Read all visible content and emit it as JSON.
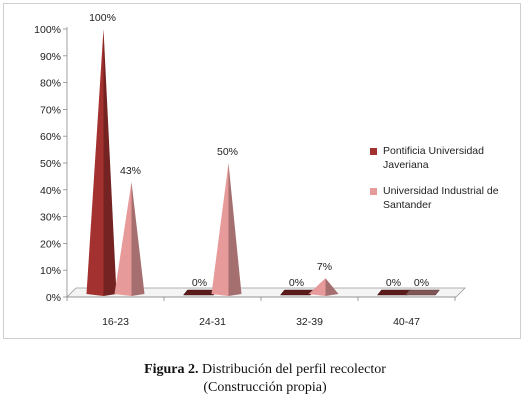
{
  "chart_data": {
    "type": "bar",
    "categories": [
      "16-23",
      "24-31",
      "32-39",
      "40-47"
    ],
    "series": [
      {
        "name": "Pontificia Universidad Javeriana",
        "color": "#a3312f",
        "values": [
          100,
          0,
          0,
          0
        ]
      },
      {
        "name": "Universidad Industrial de Santander",
        "color": "#e79a9a",
        "values": [
          43,
          50,
          7,
          0
        ]
      }
    ],
    "data_labels": [
      [
        "100%",
        "0%",
        "0%",
        "0%"
      ],
      [
        "43%",
        "50%",
        "7%",
        "0%"
      ]
    ],
    "yticks": [
      "0%",
      "10%",
      "20%",
      "30%",
      "40%",
      "50%",
      "60%",
      "70%",
      "80%",
      "90%",
      "100%"
    ],
    "ylim": [
      0,
      100
    ],
    "grid": false,
    "legend": "right",
    "style": "3d-cone"
  },
  "legend": [
    {
      "line1": "Pontificia Universidad",
      "line2": "Javeriana"
    },
    {
      "line1": "Universidad Industrial de",
      "line2": "Santander"
    }
  ],
  "caption": {
    "label": "Figura 2.",
    "title": " Distribución del perfil recolector",
    "subtitle": "(Construcción propia)"
  }
}
